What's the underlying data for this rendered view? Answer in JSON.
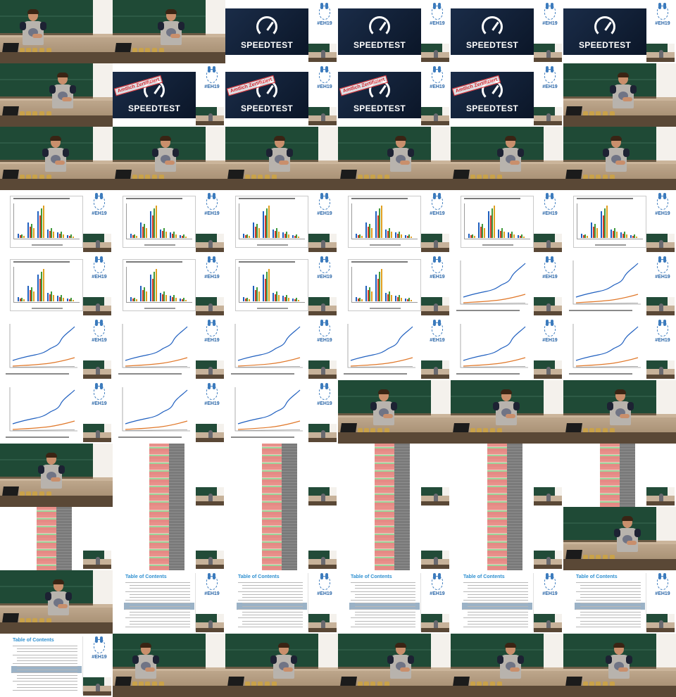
{
  "grid": {
    "columns": 6,
    "rows": 11
  },
  "slide_text": {
    "speedtest_title": "SPEEDTEST",
    "stamp": "Amtlich Zertifiziert",
    "hashtag": "#EH19",
    "toc_heading": "Table of Contents"
  },
  "colors": {
    "chalkboard": "#1f4a36",
    "speedtest_bg": "#0b1628",
    "eh19_blue": "#3c7bbd",
    "chart_blue": "#1f5fbf",
    "chart_orange": "#e0782a",
    "sheet_red": "#e8908a",
    "sheet_green": "#9cd59a"
  },
  "frames": [
    "classroom",
    "classroom",
    "speedtest",
    "speedtest",
    "speedtest",
    "speedtest",
    "classroom",
    "speedtest_stamp",
    "speedtest_stamp",
    "speedtest_stamp",
    "speedtest_stamp",
    "classroom",
    "classroom",
    "classroom",
    "classroom",
    "classroom",
    "classroom",
    "classroom",
    "bar",
    "bar",
    "bar",
    "bar",
    "bar",
    "bar",
    "bar",
    "bar",
    "bar",
    "bar",
    "line",
    "line",
    "line",
    "line",
    "line",
    "line",
    "line",
    "line",
    "line",
    "line",
    "line",
    "classroom",
    "classroom",
    "classroom",
    "classroom",
    "sheet",
    "sheet",
    "sheet",
    "sheet",
    "sheet",
    "sheet",
    "sheet",
    "sheet",
    "sheet",
    "sheet",
    "classroom",
    "classroom",
    "toc",
    "toc",
    "toc",
    "toc",
    "toc",
    "toc",
    "classroom",
    "classroom",
    "classroom",
    "classroom",
    "classroom"
  ]
}
